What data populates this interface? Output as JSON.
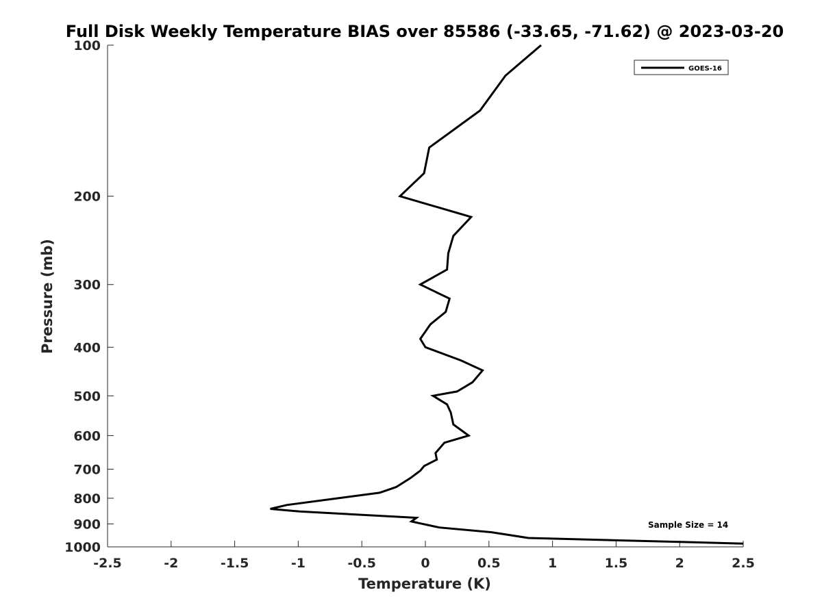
{
  "chart_data": {
    "type": "line",
    "title": "Full Disk Weekly Temperature BIAS over 85586 (-33.65, -71.62) @ 2023-03-20",
    "xlabel": "Temperature (K)",
    "ylabel": "Pressure (mb)",
    "xlim": [
      -2.5,
      2.5
    ],
    "ylim": [
      1000,
      100
    ],
    "yscale": "log",
    "y_reversed": true,
    "xticks": [
      -2.5,
      -2,
      -1.5,
      -1,
      -0.5,
      0,
      0.5,
      1,
      1.5,
      2,
      2.5
    ],
    "xtick_labels": [
      "-2.5",
      "-2",
      "-1.5",
      "-1",
      "-0.5",
      "0",
      "0.5",
      "1",
      "1.5",
      "2",
      "2.5"
    ],
    "yticks": [
      100,
      200,
      300,
      400,
      500,
      600,
      700,
      800,
      900,
      1000
    ],
    "ytick_labels": [
      "100",
      "200",
      "300",
      "400",
      "500",
      "600",
      "700",
      "800",
      "900",
      "1000"
    ],
    "grid": false,
    "legend_position": "top-right",
    "annotation": "Sample Size = 14",
    "colors": {
      "series": "#000000",
      "axes": "#262626"
    },
    "series": [
      {
        "name": "GOES-16",
        "x": [
          0.91,
          0.63,
          0.43,
          0.03,
          -0.01,
          -0.2,
          0.36,
          0.22,
          0.18,
          0.17,
          -0.04,
          0.19,
          0.16,
          0.04,
          -0.04,
          0,
          0.28,
          0.45,
          0.37,
          0.25,
          0.06,
          0.17,
          0.2,
          0.22,
          0.34,
          0.15,
          0.08,
          0.09,
          -0.01,
          -0.04,
          -0.12,
          -0.23,
          -0.36,
          -0.69,
          -1.09,
          -1.22,
          -0.99,
          -0.07,
          -0.11,
          0.11,
          0.52,
          0.81,
          2.5
        ],
        "y": [
          100,
          115,
          135,
          160,
          180,
          200,
          220,
          240,
          260,
          280,
          300,
          320,
          340,
          360,
          385,
          400,
          425,
          445,
          470,
          490,
          500,
          520,
          540,
          570,
          600,
          620,
          650,
          670,
          690,
          705,
          730,
          760,
          780,
          800,
          825,
          840,
          850,
          875,
          890,
          915,
          935,
          960,
          985
        ]
      }
    ]
  }
}
